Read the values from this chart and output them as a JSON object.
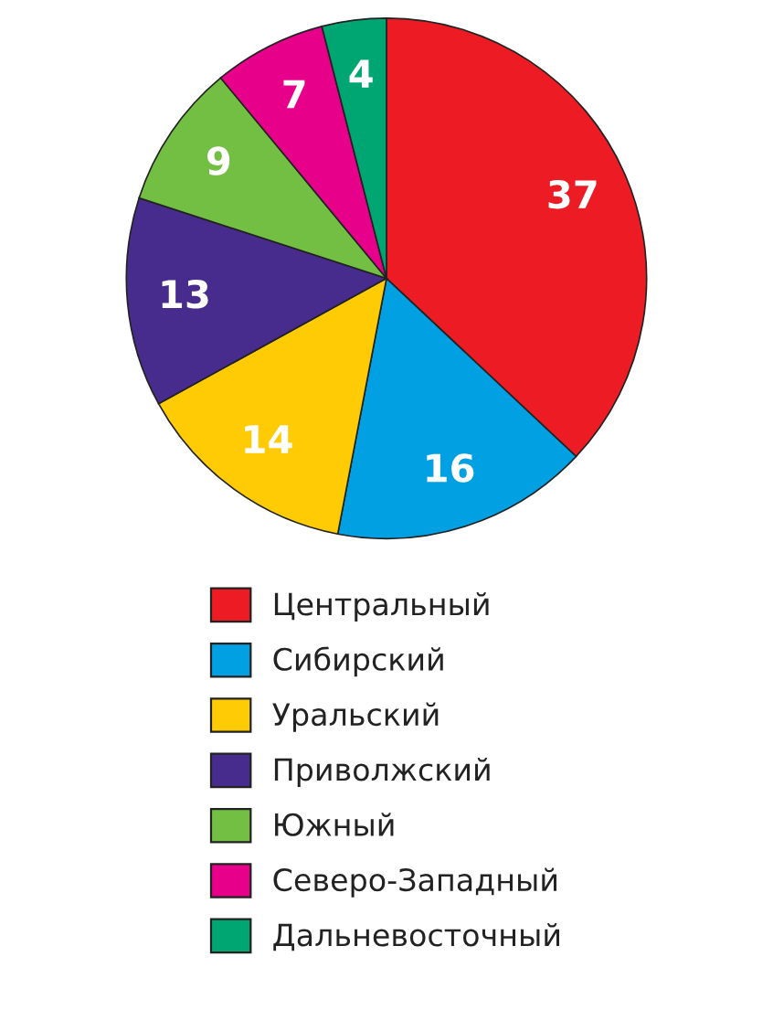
{
  "chart_data": {
    "type": "pie",
    "categories": [
      "Центральный",
      "Сибирский",
      "Уральский",
      "Приволжский",
      "Южный",
      "Северо-Западный",
      "Дальневосточный"
    ],
    "values": [
      37,
      16,
      14,
      13,
      9,
      7,
      4
    ],
    "colors": [
      "#ed1c24",
      "#00a0e3",
      "#ffcb05",
      "#472c8d",
      "#72bf44",
      "#e6008a",
      "#00a671"
    ],
    "data_labels": true,
    "legend": "bottom"
  }
}
